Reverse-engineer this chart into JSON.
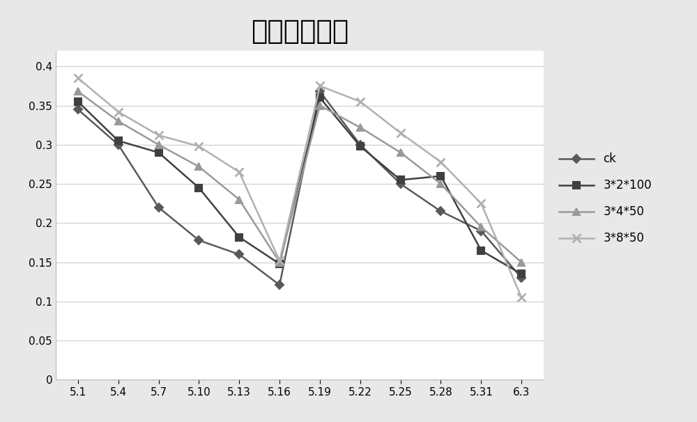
{
  "title": "土壤水分含量",
  "x_labels": [
    "5.1",
    "5.4",
    "5.7",
    "5.10",
    "5.13",
    "5.16",
    "5.19",
    "5.22",
    "5.25",
    "5.28",
    "5.31",
    "6.3"
  ],
  "series": [
    {
      "label": "ck",
      "color": "#595959",
      "marker": "D",
      "marker_color": "#595959",
      "linewidth": 1.8,
      "markersize": 6,
      "values": [
        0.345,
        0.3,
        0.22,
        0.178,
        0.16,
        0.121,
        0.368,
        0.3,
        0.25,
        0.215,
        0.19,
        0.13
      ]
    },
    {
      "label": "3*2*100",
      "color": "#404040",
      "marker": "s",
      "marker_color": "#404040",
      "linewidth": 1.8,
      "markersize": 7,
      "values": [
        0.355,
        0.305,
        0.29,
        0.245,
        0.182,
        0.148,
        0.36,
        0.298,
        0.255,
        0.26,
        0.165,
        0.135
      ]
    },
    {
      "label": "3*4*50",
      "color": "#999999",
      "marker": "^",
      "marker_color": "#999999",
      "linewidth": 1.8,
      "markersize": 7,
      "values": [
        0.368,
        0.33,
        0.3,
        0.272,
        0.23,
        0.15,
        0.35,
        0.322,
        0.29,
        0.25,
        0.195,
        0.15
      ]
    },
    {
      "label": "3*8*50",
      "color": "#b0b0b0",
      "marker": "x",
      "marker_color": "#b0b0b0",
      "linewidth": 1.8,
      "markersize": 8,
      "markeredgewidth": 2,
      "values": [
        0.385,
        0.342,
        0.312,
        0.298,
        0.265,
        0.152,
        0.375,
        0.355,
        0.315,
        0.278,
        0.225,
        0.105
      ]
    }
  ],
  "ylim": [
    0,
    0.42
  ],
  "yticks": [
    0,
    0.05,
    0.1,
    0.15,
    0.2,
    0.25,
    0.3,
    0.35,
    0.4
  ],
  "title_fontsize": 28,
  "tick_fontsize": 11,
  "legend_fontsize": 12,
  "fig_bg_color": "#e8e8e8",
  "plot_bg_color": "#ffffff",
  "grid_color": "#d0d0d0"
}
